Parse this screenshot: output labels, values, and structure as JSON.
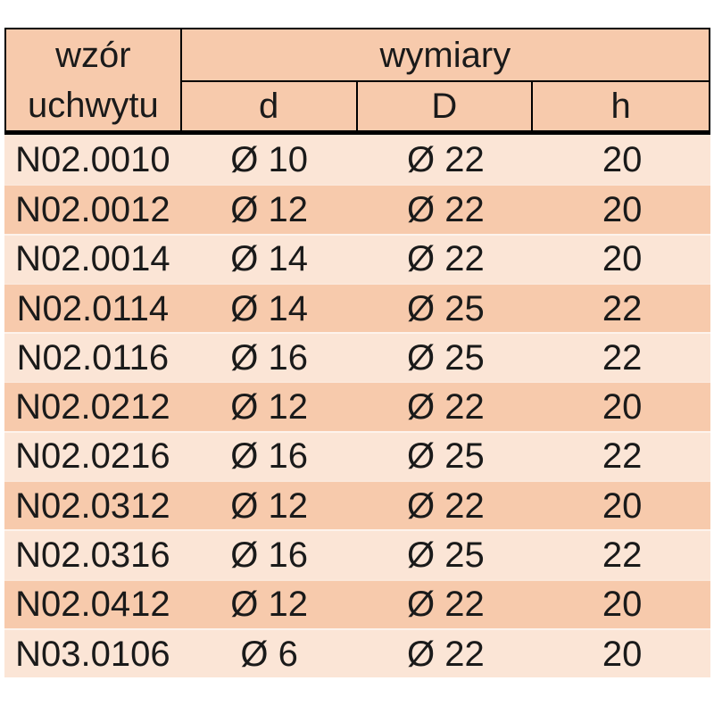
{
  "table": {
    "header": {
      "col1_line1": "wzór",
      "col1_line2": "uchwytu",
      "group_label": "wymiary"
    },
    "colors": {
      "header_bg": "#F7CAAC",
      "band_light": "#FBE5D6",
      "band_dark": "#F7CAAC",
      "border": "#000000",
      "text": "#1A1A1A",
      "page_bg": "#FFFFFF"
    }
  },
  "chart_data": {
    "type": "table",
    "title": "",
    "columns": [
      "wzór uchwytu",
      "d",
      "D",
      "h"
    ],
    "column_group": {
      "label": "wymiary",
      "spans": [
        "d",
        "D",
        "h"
      ]
    },
    "rows": [
      [
        "N02.0010",
        "Ø 10",
        "Ø 22",
        "20"
      ],
      [
        "N02.0012",
        "Ø 12",
        "Ø 22",
        "20"
      ],
      [
        "N02.0014",
        "Ø 14",
        "Ø 22",
        "20"
      ],
      [
        "N02.0114",
        "Ø 14",
        "Ø 25",
        "22"
      ],
      [
        "N02.0116",
        "Ø 16",
        "Ø 25",
        "22"
      ],
      [
        "N02.0212",
        "Ø 12",
        "Ø 22",
        "20"
      ],
      [
        "N02.0216",
        "Ø 16",
        "Ø 25",
        "22"
      ],
      [
        "N02.0312",
        "Ø 12",
        "Ø 22",
        "20"
      ],
      [
        "N02.0316",
        "Ø 16",
        "Ø 25",
        "22"
      ],
      [
        "N02.0412",
        "Ø 12",
        "Ø 22",
        "20"
      ],
      [
        "N03.0106",
        "Ø 6",
        "Ø 22",
        "20"
      ]
    ]
  }
}
